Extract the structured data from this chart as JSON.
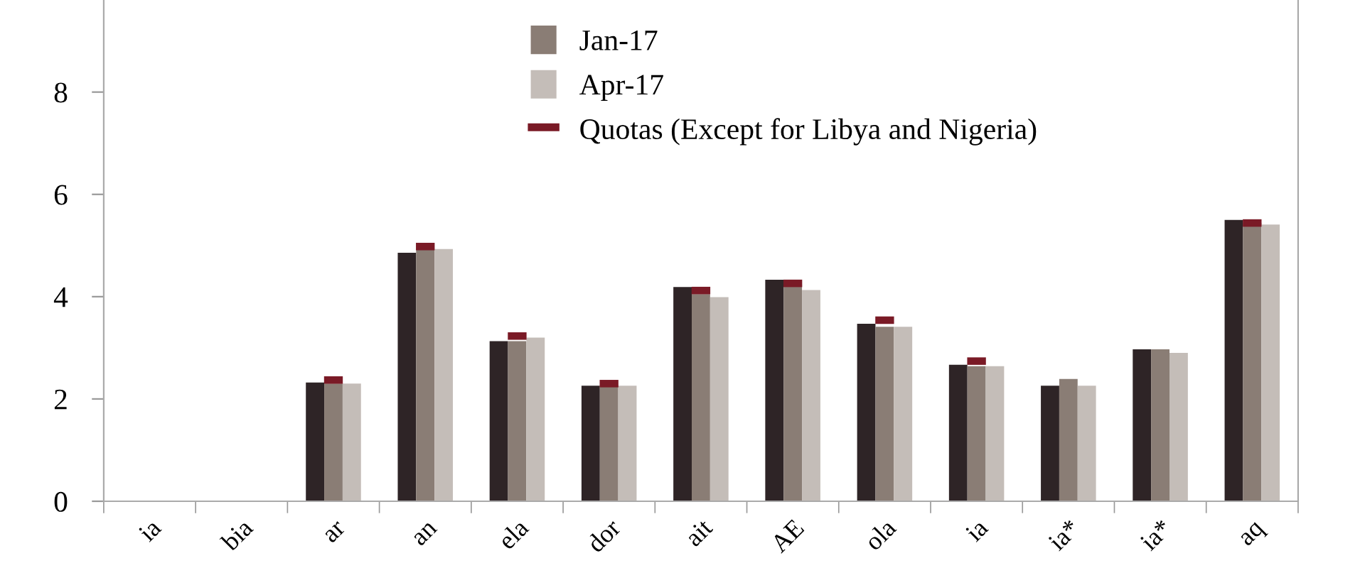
{
  "chart_data": {
    "type": "bar",
    "categories": [
      "ia",
      "bia",
      "ar",
      "an",
      "ela",
      "dor",
      "ait",
      "AE",
      "ola",
      "ia",
      "ia*",
      "ia*",
      "aq"
    ],
    "series": [
      {
        "color": "#2e2426",
        "values": [
          null,
          null,
          2.32,
          4.86,
          3.13,
          2.26,
          4.19,
          4.33,
          3.47,
          2.67,
          2.26,
          2.97,
          5.5
        ]
      },
      {
        "name": "Jan-17",
        "color": "#8a7d75",
        "values": [
          null,
          null,
          2.3,
          4.93,
          3.13,
          2.26,
          4.05,
          4.24,
          3.41,
          2.64,
          2.39,
          2.97,
          5.44
        ]
      },
      {
        "name": "Apr-17",
        "color": "#c4bdb8",
        "values": [
          null,
          null,
          2.3,
          4.93,
          3.2,
          2.26,
          3.99,
          4.13,
          3.41,
          2.64,
          2.26,
          2.9,
          5.41
        ]
      },
      {
        "name": "Quotas (Except for Libya and Nigeria)",
        "type": "scatter",
        "color": "#7a1a26",
        "values": [
          null,
          null,
          2.37,
          4.98,
          3.23,
          2.3,
          4.12,
          4.26,
          3.54,
          2.74,
          null,
          null,
          5.44
        ]
      }
    ],
    "ylim": [
      0,
      9.8
    ],
    "yticks": [
      0,
      2,
      4,
      6,
      8
    ],
    "grid": false,
    "legend": "top"
  }
}
